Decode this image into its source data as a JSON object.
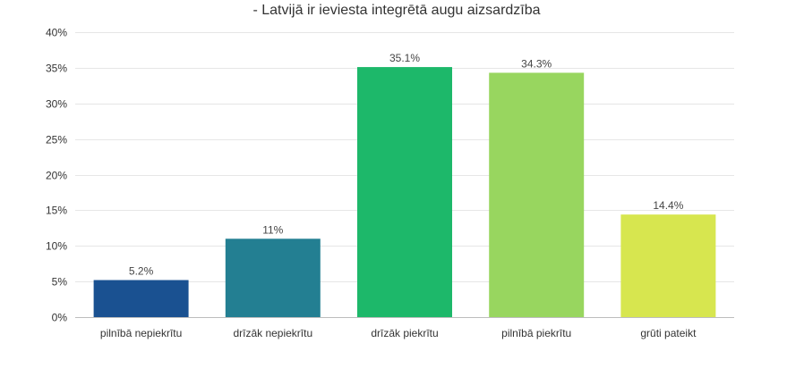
{
  "chart_data": {
    "type": "bar",
    "title": "- Latvijā ir ieviesta integrētā augu aizsardzība",
    "xlabel": "",
    "ylabel": "",
    "categories": [
      "pilnībā nepiekrītu",
      "drīzāk nepiekrītu",
      "drīzāk piekrītu",
      "pilnībā piekrītu",
      "grūti pateikt"
    ],
    "values": [
      5.2,
      11,
      35.1,
      34.3,
      14.4
    ],
    "value_labels": [
      "5.2%",
      "11%",
      "35.1%",
      "34.3%",
      "14.4%"
    ],
    "colors": [
      "#1a5191",
      "#237f92",
      "#1db86a",
      "#98d65f",
      "#d7e64f"
    ],
    "ylim": [
      0,
      40
    ],
    "yticks": [
      0,
      5,
      10,
      15,
      20,
      25,
      30,
      35,
      40
    ],
    "ytick_labels": [
      "0%",
      "5%",
      "10%",
      "15%",
      "20%",
      "25%",
      "30%",
      "35%",
      "40%"
    ],
    "grid": true,
    "legend": "none"
  }
}
